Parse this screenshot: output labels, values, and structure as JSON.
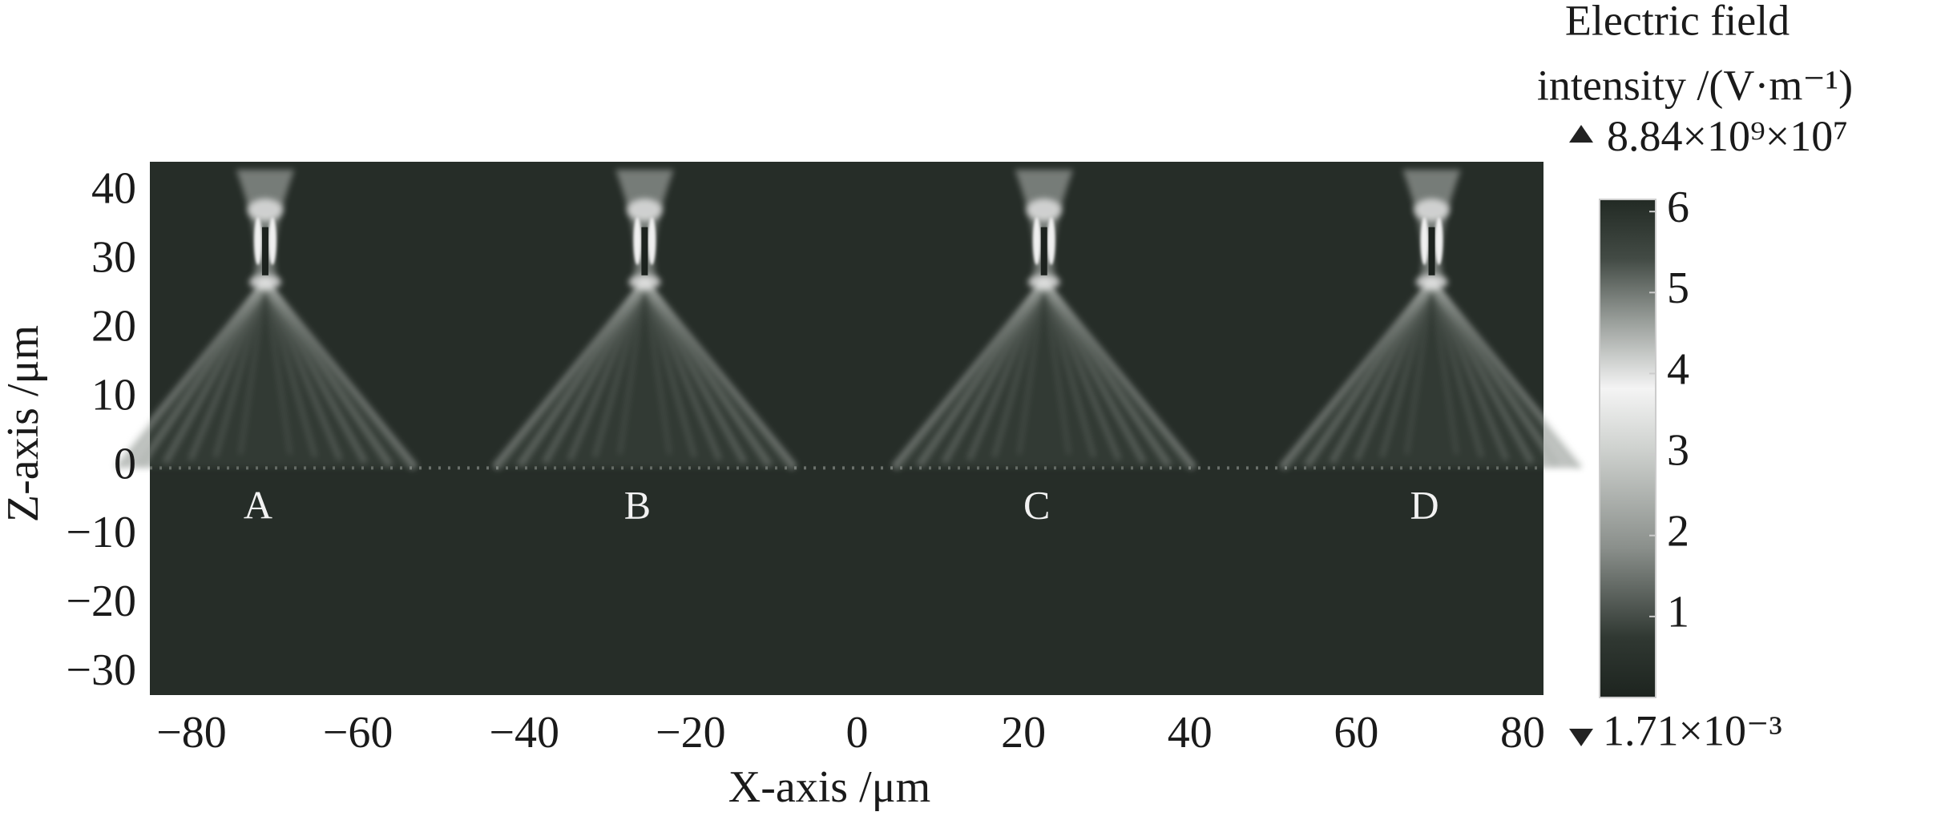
{
  "chart_data": {
    "type": "field-map",
    "x_label": "X-axis /μm",
    "y_label": "Z-axis /μm",
    "xlim": [
      -85,
      82.5
    ],
    "ylim": [
      -33,
      44.5
    ],
    "xticks": [
      {
        "value": -80,
        "label": "−80"
      },
      {
        "value": -60,
        "label": "−60"
      },
      {
        "value": -40,
        "label": "−40"
      },
      {
        "value": -20,
        "label": "−20"
      },
      0,
      20,
      40,
      60,
      80
    ],
    "yticks": [
      {
        "value": -30,
        "label": "−30"
      },
      {
        "value": -20,
        "label": "−20"
      },
      {
        "value": -10,
        "label": "−10"
      },
      0,
      10,
      20,
      30,
      40
    ],
    "annotations": [
      {
        "text": "A",
        "x": -72,
        "y": -6
      },
      {
        "text": "B",
        "x": -26.4,
        "y": -6
      },
      {
        "text": "C",
        "x": 21.6,
        "y": -6
      },
      {
        "text": "D",
        "x": 68.2,
        "y": -6
      }
    ],
    "colorbar": {
      "label": [
        "Electric field",
        "intensity /(V·m⁻¹)"
      ],
      "max_label": "8.84×10⁹",
      "scale_label": "×10⁷",
      "min_label": "1.71×10⁻³",
      "clim": [
        0,
        6.15
      ],
      "ticks": [
        1,
        2,
        3,
        4,
        5,
        6
      ]
    }
  }
}
